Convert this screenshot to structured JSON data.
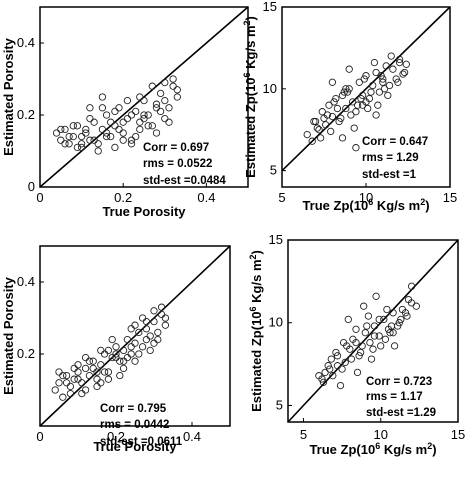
{
  "chart_data": [
    {
      "type": "scatter",
      "title": "",
      "xlabel": "True Porosity",
      "ylabel": "Estimated Porosity",
      "xlim": [
        0,
        0.5
      ],
      "ylim": [
        0,
        0.5
      ],
      "xticks": [
        "0",
        "0.2",
        "0.4"
      ],
      "yticks": [
        "0",
        "0.2",
        "0.4"
      ],
      "reference_line": "y = x",
      "grid": false,
      "stats": [
        "Corr = 0.697",
        "rms = 0.0522",
        "std-est =0.0484"
      ],
      "series": [
        {
          "x": [
            0.04,
            0.05,
            0.06,
            0.07,
            0.08,
            0.09,
            0.1,
            0.11,
            0.12,
            0.13,
            0.14,
            0.15,
            0.16,
            0.17,
            0.18,
            0.19,
            0.2,
            0.21,
            0.22,
            0.23,
            0.24,
            0.25,
            0.26,
            0.27,
            0.28,
            0.29,
            0.3,
            0.31,
            0.32,
            0.33,
            0.06,
            0.08,
            0.1,
            0.12,
            0.14,
            0.16,
            0.18,
            0.2,
            0.22,
            0.24,
            0.26,
            0.28,
            0.3,
            0.32,
            0.07,
            0.09,
            0.11,
            0.13,
            0.15,
            0.17,
            0.19,
            0.21,
            0.23,
            0.25,
            0.27,
            0.29,
            0.31,
            0.05,
            0.1,
            0.15,
            0.2,
            0.25,
            0.3,
            0.12,
            0.18,
            0.24,
            0.16,
            0.22,
            0.28,
            0.33
          ],
          "y": [
            0.15,
            0.13,
            0.16,
            0.12,
            0.14,
            0.17,
            0.11,
            0.15,
            0.13,
            0.18,
            0.12,
            0.16,
            0.2,
            0.14,
            0.17,
            0.22,
            0.15,
            0.19,
            0.12,
            0.21,
            0.16,
            0.24,
            0.2,
            0.17,
            0.23,
            0.26,
            0.19,
            0.22,
            0.28,
            0.25,
            0.12,
            0.17,
            0.14,
            0.19,
            0.1,
            0.15,
            0.21,
            0.18,
            0.13,
            0.25,
            0.17,
            0.22,
            0.24,
            0.3,
            0.14,
            0.11,
            0.16,
            0.13,
            0.22,
            0.18,
            0.16,
            0.24,
            0.14,
            0.2,
            0.28,
            0.21,
            0.18,
            0.16,
            0.12,
            0.25,
            0.13,
            0.19,
            0.29,
            0.22,
            0.11,
            0.18,
            0.14,
            0.2,
            0.15,
            0.27
          ]
        }
      ]
    },
    {
      "type": "scatter",
      "title": "",
      "xlabel": "True Zp(10",
      "xlabel_sup": "6",
      "xlabel_end": " Kg/s m",
      "xlabel_sup2": "2",
      "xlabel_close": ")",
      "ylabel": "Estimated Zp(10",
      "ylabel_sup": "6",
      "ylabel_end": " Kg/s m",
      "ylabel_sup2": "2",
      "ylabel_close": ")",
      "xlim": [
        5,
        15
      ],
      "ylim": [
        4,
        15
      ],
      "xticks": [
        "5",
        "10",
        "15"
      ],
      "yticks": [
        "5",
        "10",
        "15"
      ],
      "reference_line": "y = x",
      "grid": false,
      "stats": [
        "Corr = 0.647",
        "rms = 1.29",
        "std-est =1"
      ],
      "series": [
        {
          "x": [
            6.5,
            6.8,
            7.0,
            7.2,
            7.4,
            7.6,
            7.8,
            8.0,
            8.2,
            8.4,
            8.6,
            8.8,
            9.0,
            9.2,
            9.4,
            9.6,
            9.8,
            10.0,
            10.2,
            10.4,
            10.6,
            10.8,
            11.0,
            11.2,
            11.4,
            11.6,
            11.8,
            12.0,
            12.2,
            12.4,
            7.1,
            7.5,
            7.9,
            8.3,
            8.7,
            9.1,
            9.5,
            9.9,
            10.3,
            10.7,
            11.1,
            11.5,
            11.9,
            12.3,
            6.9,
            7.3,
            7.7,
            8.1,
            8.5,
            8.9,
            9.3,
            9.7,
            10.1,
            10.5,
            10.9,
            11.3,
            8.0,
            9.0,
            10.0,
            11.0,
            12.0,
            8.6,
            9.4,
            10.6,
            8.8,
            9.8
          ],
          "y": [
            7.2,
            6.8,
            8.0,
            7.5,
            8.6,
            7.8,
            9.0,
            8.3,
            9.4,
            8.0,
            9.6,
            8.8,
            10.0,
            9.2,
            8.6,
            10.4,
            9.6,
            10.8,
            9.4,
            10.2,
            11.0,
            9.8,
            10.6,
            11.4,
            10.2,
            11.2,
            10.6,
            11.8,
            10.9,
            11.5,
            7.6,
            8.2,
            7.4,
            8.8,
            9.8,
            8.4,
            9.0,
            10.6,
            9.8,
            9.0,
            10.0,
            12.0,
            10.4,
            11.0,
            8.0,
            7.0,
            8.4,
            9.2,
            8.2,
            9.8,
            7.6,
            9.4,
            8.8,
            11.6,
            10.8,
            9.6,
            10.4,
            11.2,
            9.2,
            10.4,
            11.6,
            7.0,
            6.4,
            8.4,
            10.0,
            9.0
          ]
        }
      ]
    },
    {
      "type": "scatter",
      "title": "",
      "xlabel": "True Porosity",
      "ylabel": "Estimated Porosity",
      "xlim": [
        0,
        0.5
      ],
      "ylim": [
        0,
        0.5
      ],
      "xticks": [
        "0",
        "0.2",
        "0.4"
      ],
      "yticks": [
        "0.2",
        "0.4"
      ],
      "reference_line": "y = x",
      "grid": false,
      "stats": [
        "Corr = 0.795",
        "rms = 0.0442",
        "std-est =0.0611"
      ],
      "series": [
        {
          "x": [
            0.04,
            0.05,
            0.06,
            0.07,
            0.08,
            0.09,
            0.1,
            0.11,
            0.12,
            0.13,
            0.14,
            0.15,
            0.16,
            0.17,
            0.18,
            0.19,
            0.2,
            0.21,
            0.22,
            0.23,
            0.24,
            0.25,
            0.26,
            0.27,
            0.28,
            0.29,
            0.3,
            0.31,
            0.32,
            0.33,
            0.06,
            0.08,
            0.1,
            0.12,
            0.14,
            0.16,
            0.18,
            0.2,
            0.22,
            0.24,
            0.26,
            0.28,
            0.3,
            0.32,
            0.07,
            0.09,
            0.11,
            0.13,
            0.15,
            0.17,
            0.19,
            0.21,
            0.23,
            0.25,
            0.27,
            0.29,
            0.31,
            0.05,
            0.1,
            0.15,
            0.2,
            0.25,
            0.3,
            0.12,
            0.18,
            0.24,
            0.16,
            0.22,
            0.28,
            0.33
          ],
          "y": [
            0.1,
            0.12,
            0.08,
            0.14,
            0.11,
            0.13,
            0.15,
            0.12,
            0.16,
            0.14,
            0.18,
            0.13,
            0.17,
            0.2,
            0.15,
            0.19,
            0.22,
            0.18,
            0.21,
            0.24,
            0.2,
            0.23,
            0.26,
            0.22,
            0.27,
            0.25,
            0.29,
            0.26,
            0.31,
            0.28,
            0.14,
            0.09,
            0.17,
            0.1,
            0.16,
            0.12,
            0.21,
            0.19,
            0.16,
            0.27,
            0.2,
            0.24,
            0.23,
            0.33,
            0.12,
            0.16,
            0.09,
            0.18,
            0.11,
            0.15,
            0.24,
            0.14,
            0.19,
            0.18,
            0.3,
            0.21,
            0.24,
            0.15,
            0.13,
            0.15,
            0.2,
            0.28,
            0.32,
            0.19,
            0.13,
            0.22,
            0.21,
            0.18,
            0.29,
            0.3
          ]
        }
      ]
    },
    {
      "type": "scatter",
      "title": "",
      "xlabel": "True Zp(10",
      "xlabel_sup": "6",
      "xlabel_end": " Kg/s m",
      "xlabel_sup2": "2",
      "xlabel_close": ")",
      "ylabel": "Estimated Zp(10",
      "ylabel_sup": "6",
      "ylabel_end": " Kg/s m",
      "ylabel_sup2": "2",
      "ylabel_close": ")",
      "xlim": [
        4,
        15
      ],
      "ylim": [
        4,
        15
      ],
      "xticks": [
        "5",
        "10",
        "15"
      ],
      "yticks": [
        "5",
        "10",
        "15"
      ],
      "reference_line": "y = x",
      "grid": false,
      "stats": [
        "Corr = 0.723",
        "rms = 1.17",
        "std-est =1.29"
      ],
      "series": [
        {
          "x": [
            6.0,
            6.3,
            6.6,
            6.9,
            7.2,
            7.5,
            7.8,
            8.1,
            8.4,
            8.7,
            9.0,
            9.3,
            9.6,
            9.9,
            10.2,
            10.5,
            10.8,
            11.1,
            11.4,
            11.7,
            12.0,
            12.3,
            6.4,
            6.8,
            7.2,
            7.6,
            8.0,
            8.4,
            8.8,
            9.2,
            9.6,
            10.0,
            10.4,
            10.8,
            11.2,
            11.6,
            12.0,
            6.2,
            6.7,
            7.1,
            7.7,
            8.2,
            8.6,
            9.1,
            9.5,
            9.9,
            10.3,
            10.7,
            11.3,
            11.8,
            7.4,
            8.5,
            9.4,
            10.6,
            8.9,
            9.7,
            10.9,
            7.9
          ],
          "y": [
            6.8,
            6.4,
            7.4,
            6.8,
            8.0,
            7.2,
            8.6,
            7.8,
            8.8,
            8.2,
            9.4,
            8.8,
            9.8,
            9.2,
            10.2,
            9.6,
            10.6,
            9.8,
            10.8,
            10.4,
            11.2,
            11.0,
            7.0,
            7.8,
            7.4,
            8.8,
            8.4,
            9.6,
            8.6,
            10.4,
            9.2,
            8.6,
            10.8,
            9.4,
            10.0,
            10.6,
            12.2,
            6.6,
            7.2,
            8.2,
            7.6,
            9.0,
            8.0,
            9.8,
            8.4,
            10.2,
            9.0,
            9.8,
            10.2,
            11.4,
            6.2,
            7.0,
            7.8,
            9.4,
            11.0,
            11.6,
            8.6,
            10.2
          ]
        }
      ]
    }
  ]
}
